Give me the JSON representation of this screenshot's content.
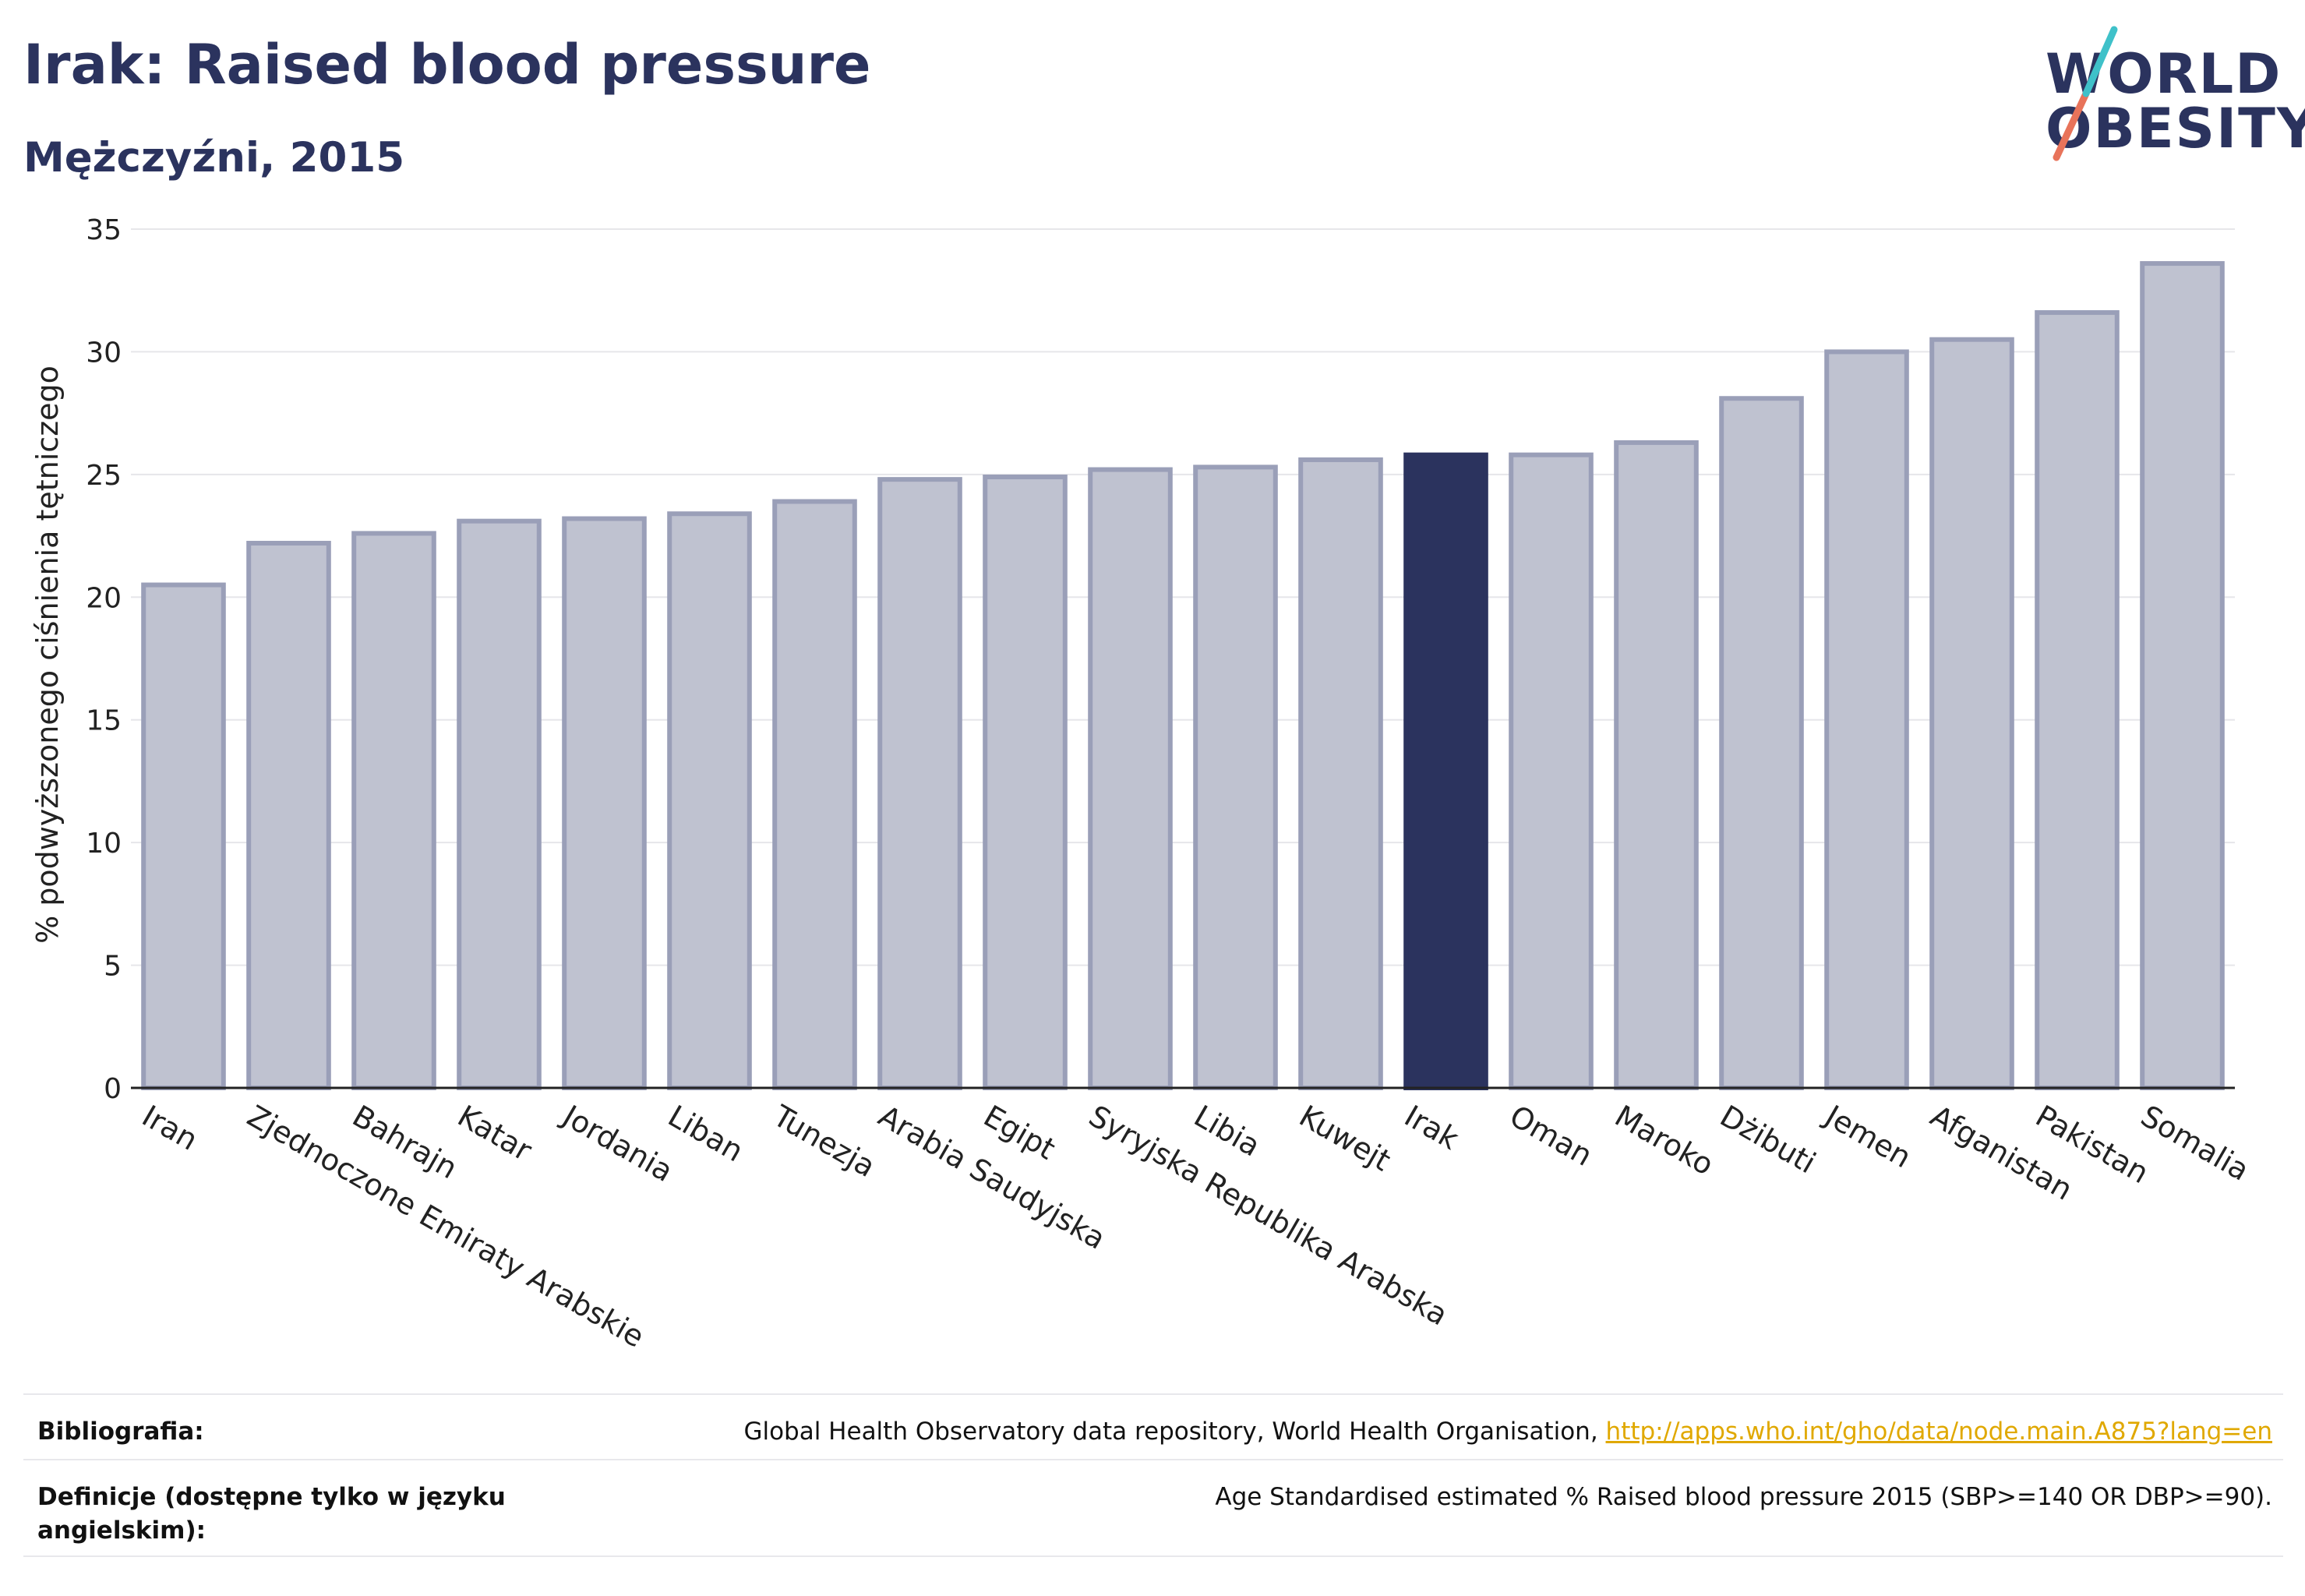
{
  "title": "Irak: Raised blood pressure",
  "subtitle": "Mężczyźni, 2015",
  "logo": {
    "line1": "WORLD",
    "line2": "OBESITY",
    "slash_colors": [
      "#e8735a",
      "#3fc1c9"
    ]
  },
  "colors": {
    "bar": "#bfc2d0",
    "bar_border": "#9a9fb8",
    "highlight": "#2b335e",
    "grid": "#e6e6ea",
    "axis": "#222222"
  },
  "chart_data": {
    "type": "bar",
    "ylabel": "% podwyższonego ciśnienia tętniczego",
    "ylim": [
      0,
      35
    ],
    "yticks": [
      0,
      5,
      10,
      15,
      20,
      25,
      30,
      35
    ],
    "grid": true,
    "highlight": "Irak",
    "categories": [
      "Iran",
      "Zjednoczone Emiraty Arabskie",
      "Bahrajn",
      "Katar",
      "Jordania",
      "Liban",
      "Tunezja",
      "Arabia Saudyjska",
      "Egipt",
      "Syryjska Republika Arabska",
      "Libia",
      "Kuwejt",
      "Irak",
      "Oman",
      "Maroko",
      "Dżibuti",
      "Jemen",
      "Afganistan",
      "Pakistan",
      "Somalia"
    ],
    "values": [
      20.5,
      22.2,
      22.6,
      23.1,
      23.2,
      23.4,
      23.9,
      24.8,
      24.9,
      25.2,
      25.3,
      25.6,
      25.8,
      25.8,
      26.3,
      28.1,
      30.0,
      30.5,
      31.6,
      33.6
    ]
  },
  "footer": {
    "bibliography_label": "Bibliografia:",
    "bibliography_text": "Global Health Observatory data repository, World Health Organisation, ",
    "bibliography_link": "http://apps.who.int/gho/data/node.main.A875?lang=en",
    "definitions_label": "Definicje (dostępne tylko w języku angielskim):",
    "definitions_text": "Age Standardised estimated % Raised blood pressure 2015 (SBP>=140 OR DBP>=90)."
  }
}
